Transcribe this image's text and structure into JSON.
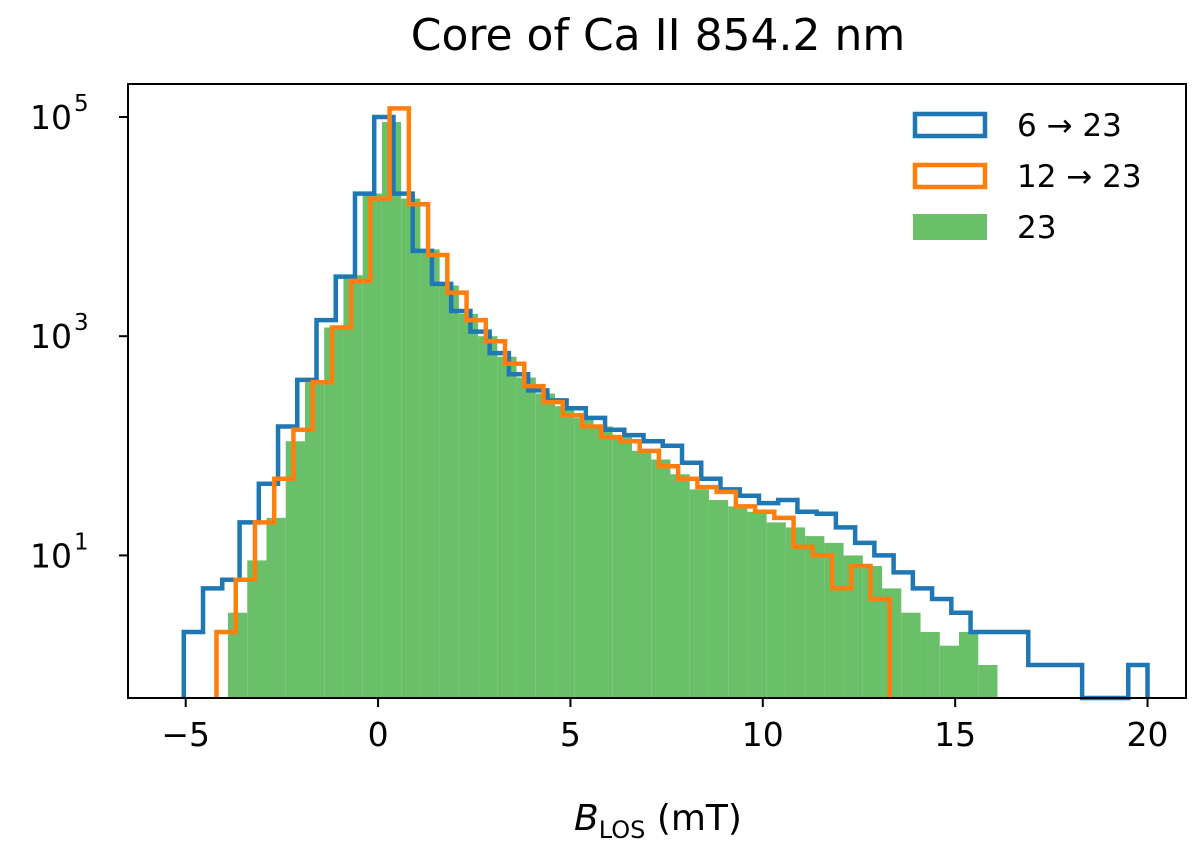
{
  "chart_data": {
    "type": "histogram",
    "title": "Core of Ca II 854.2 nm",
    "xlabel": {
      "main": "B",
      "sub": "LOS",
      "units": " (mT)"
    },
    "ylabel": "",
    "yscale": "log",
    "xlim": [
      -6.5,
      21
    ],
    "ylim": [
      0.5,
      200000
    ],
    "x_ticks": [
      {
        "value": -5,
        "label": "−5"
      },
      {
        "value": 0,
        "label": "0"
      },
      {
        "value": 5,
        "label": "5"
      },
      {
        "value": 10,
        "label": "10"
      },
      {
        "value": 15,
        "label": "15"
      },
      {
        "value": 20,
        "label": "20"
      }
    ],
    "y_ticks": [
      {
        "value": 10,
        "base": "10",
        "exp": "1"
      },
      {
        "value": 1000,
        "base": "10",
        "exp": "3"
      },
      {
        "value": 100000,
        "base": "10",
        "exp": "5"
      }
    ],
    "series": [
      {
        "name": "6 → 23",
        "style": "step",
        "color": "#1f77b4",
        "points": [
          [
            -5.05,
            2
          ],
          [
            -4.55,
            5
          ],
          [
            -4.05,
            6
          ],
          [
            -3.6,
            20
          ],
          [
            -3.1,
            45
          ],
          [
            -2.6,
            150
          ],
          [
            -2.1,
            400
          ],
          [
            -1.6,
            1400
          ],
          [
            -1.1,
            3500
          ],
          [
            -0.6,
            20000
          ],
          [
            -0.1,
            100000
          ],
          [
            0.4,
            20000
          ],
          [
            0.9,
            6000
          ],
          [
            1.4,
            3000
          ],
          [
            1.9,
            1700
          ],
          [
            2.4,
            1100
          ],
          [
            2.9,
            700
          ],
          [
            3.4,
            450
          ],
          [
            3.9,
            320
          ],
          [
            4.4,
            260
          ],
          [
            4.9,
            220
          ],
          [
            5.4,
            180
          ],
          [
            5.9,
            140
          ],
          [
            6.4,
            125
          ],
          [
            6.9,
            110
          ],
          [
            7.4,
            100
          ],
          [
            7.9,
            70
          ],
          [
            8.4,
            50
          ],
          [
            8.9,
            40
          ],
          [
            9.4,
            35
          ],
          [
            9.9,
            30
          ],
          [
            10.4,
            32
          ],
          [
            10.9,
            25
          ],
          [
            11.4,
            24
          ],
          [
            11.9,
            18
          ],
          [
            12.4,
            13
          ],
          [
            12.9,
            10
          ],
          [
            13.4,
            7
          ],
          [
            13.9,
            5
          ],
          [
            14.4,
            4
          ],
          [
            14.9,
            3
          ],
          [
            15.4,
            2
          ],
          [
            15.9,
            2
          ],
          [
            16.4,
            2
          ],
          [
            16.9,
            1
          ],
          [
            17.4,
            1
          ],
          [
            17.9,
            1
          ],
          [
            18.3,
            0.3
          ],
          [
            19.5,
            1
          ],
          [
            20.0,
            0.3
          ]
        ]
      },
      {
        "name": "12 → 23",
        "style": "step",
        "color": "#ff7f0e",
        "points": [
          [
            -4.2,
            2
          ],
          [
            -3.7,
            6
          ],
          [
            -3.2,
            20
          ],
          [
            -2.7,
            50
          ],
          [
            -2.2,
            140
          ],
          [
            -1.7,
            380
          ],
          [
            -1.2,
            1200
          ],
          [
            -0.7,
            3200
          ],
          [
            -0.2,
            18000
          ],
          [
            0.3,
            120000
          ],
          [
            0.8,
            16000
          ],
          [
            1.3,
            5500
          ],
          [
            1.8,
            2500
          ],
          [
            2.3,
            1400
          ],
          [
            2.8,
            900
          ],
          [
            3.3,
            560
          ],
          [
            3.8,
            350
          ],
          [
            4.3,
            250
          ],
          [
            4.8,
            190
          ],
          [
            5.3,
            150
          ],
          [
            5.8,
            120
          ],
          [
            6.3,
            110
          ],
          [
            6.8,
            90
          ],
          [
            7.3,
            65
          ],
          [
            7.8,
            50
          ],
          [
            8.3,
            42
          ],
          [
            8.8,
            38
          ],
          [
            9.3,
            28
          ],
          [
            9.8,
            25
          ],
          [
            10.3,
            22
          ],
          [
            10.8,
            12
          ],
          [
            11.3,
            10
          ],
          [
            11.8,
            5
          ],
          [
            12.3,
            8
          ],
          [
            12.8,
            4
          ],
          [
            13.3,
            0.3
          ]
        ]
      },
      {
        "name": "23",
        "style": "filled",
        "color": "#6abf69",
        "points": [
          [
            -3.9,
            3
          ],
          [
            -3.4,
            9
          ],
          [
            -2.9,
            22
          ],
          [
            -2.4,
            110
          ],
          [
            -1.9,
            380
          ],
          [
            -1.4,
            1200
          ],
          [
            -0.9,
            3600
          ],
          [
            -0.4,
            20000
          ],
          [
            0.1,
            90000
          ],
          [
            0.6,
            18000
          ],
          [
            1.1,
            6200
          ],
          [
            1.6,
            2900
          ],
          [
            2.1,
            1600
          ],
          [
            2.6,
            1000
          ],
          [
            3.1,
            650
          ],
          [
            3.6,
            420
          ],
          [
            4.1,
            300
          ],
          [
            4.6,
            230
          ],
          [
            5.1,
            180
          ],
          [
            5.6,
            150
          ],
          [
            6.1,
            120
          ],
          [
            6.6,
            90
          ],
          [
            7.1,
            75
          ],
          [
            7.6,
            55
          ],
          [
            8.1,
            40
          ],
          [
            8.6,
            32
          ],
          [
            9.1,
            28
          ],
          [
            9.6,
            25
          ],
          [
            10.1,
            20
          ],
          [
            10.6,
            18
          ],
          [
            11.1,
            15
          ],
          [
            11.6,
            13
          ],
          [
            12.1,
            10
          ],
          [
            12.6,
            8
          ],
          [
            13.1,
            5
          ],
          [
            13.6,
            3
          ],
          [
            14.1,
            2
          ],
          [
            14.6,
            1.5
          ],
          [
            15.1,
            2
          ],
          [
            15.6,
            1
          ],
          [
            16.1,
            0.3
          ]
        ]
      }
    ],
    "legend_position": "top-right"
  }
}
